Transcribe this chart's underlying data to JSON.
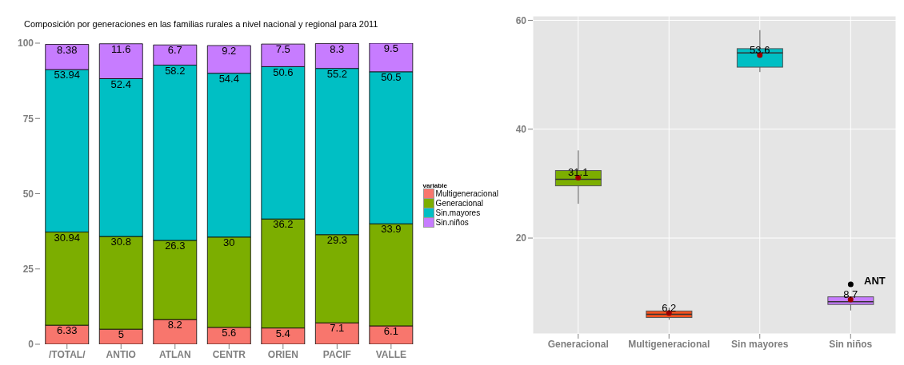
{
  "chart_data": [
    {
      "type": "bar",
      "title": "Composición por generaciones en las familias rurales a nivel nacional y regional para 2011",
      "categories": [
        "/TOTAL/",
        "ANTIO",
        "ATLAN",
        "CENTR",
        "ORIEN",
        "PACIF",
        "VALLE"
      ],
      "stacked": true,
      "data_labels": true,
      "legend": "right",
      "legend_title": "variable",
      "ylim": [
        0,
        100
      ],
      "yticks": [
        0,
        25,
        50,
        75,
        100
      ],
      "series": [
        {
          "name": "Multigeneracional",
          "color": "#f8766d",
          "values": [
            6.33,
            5,
            8.2,
            5.6,
            5.4,
            7.1,
            6.1
          ]
        },
        {
          "name": "Generacional",
          "color": "#7cae00",
          "values": [
            30.94,
            30.8,
            26.3,
            30,
            36.2,
            29.3,
            33.9
          ]
        },
        {
          "name": "Sin.mayores",
          "color": "#00bfc4",
          "values": [
            53.94,
            52.4,
            58.2,
            54.4,
            50.6,
            55.2,
            50.5
          ]
        },
        {
          "name": "Sin.niños",
          "color": "#c77cff",
          "values": [
            8.38,
            11.6,
            6.7,
            9.2,
            7.5,
            8.3,
            9.5
          ]
        }
      ]
    },
    {
      "type": "box",
      "categories": [
        "Generacional",
        "Multigeneracional",
        "Sin mayores",
        "Sin niños"
      ],
      "colors": [
        "#7cae00",
        "#f4511e",
        "#00bfc4",
        "#c77cff"
      ],
      "ylim": [
        2.4,
        60.8
      ],
      "yticks": [
        20,
        40,
        60
      ],
      "grid": true,
      "boxes": [
        {
          "low": 26.3,
          "q1": 29.6,
          "median": 30.8,
          "q3": 32.4,
          "high": 36.1,
          "mean": 31.1
        },
        {
          "low": 5.0,
          "q1": 5.4,
          "median": 6.0,
          "q3": 6.6,
          "high": 7.2,
          "mean": 6.2
        },
        {
          "low": 50.5,
          "q1": 51.4,
          "median": 54.0,
          "q3": 54.8,
          "high": 58.2,
          "mean": 53.6
        },
        {
          "low": 6.7,
          "q1": 7.8,
          "median": 8.3,
          "q3": 9.2,
          "high": 9.2,
          "mean": 8.7,
          "outliers": [
            11.5
          ]
        }
      ],
      "annotations": [
        {
          "text": "31.1",
          "x": "Generacional",
          "y": 31.1
        },
        {
          "text": "6.2",
          "x": "Multigeneracional",
          "y": 6.2
        },
        {
          "text": "53.6",
          "x": "Sin mayores",
          "y": 53.6
        },
        {
          "text": "8.7",
          "x": "Sin niños",
          "y": 8.7
        },
        "ANT"
      ]
    }
  ]
}
